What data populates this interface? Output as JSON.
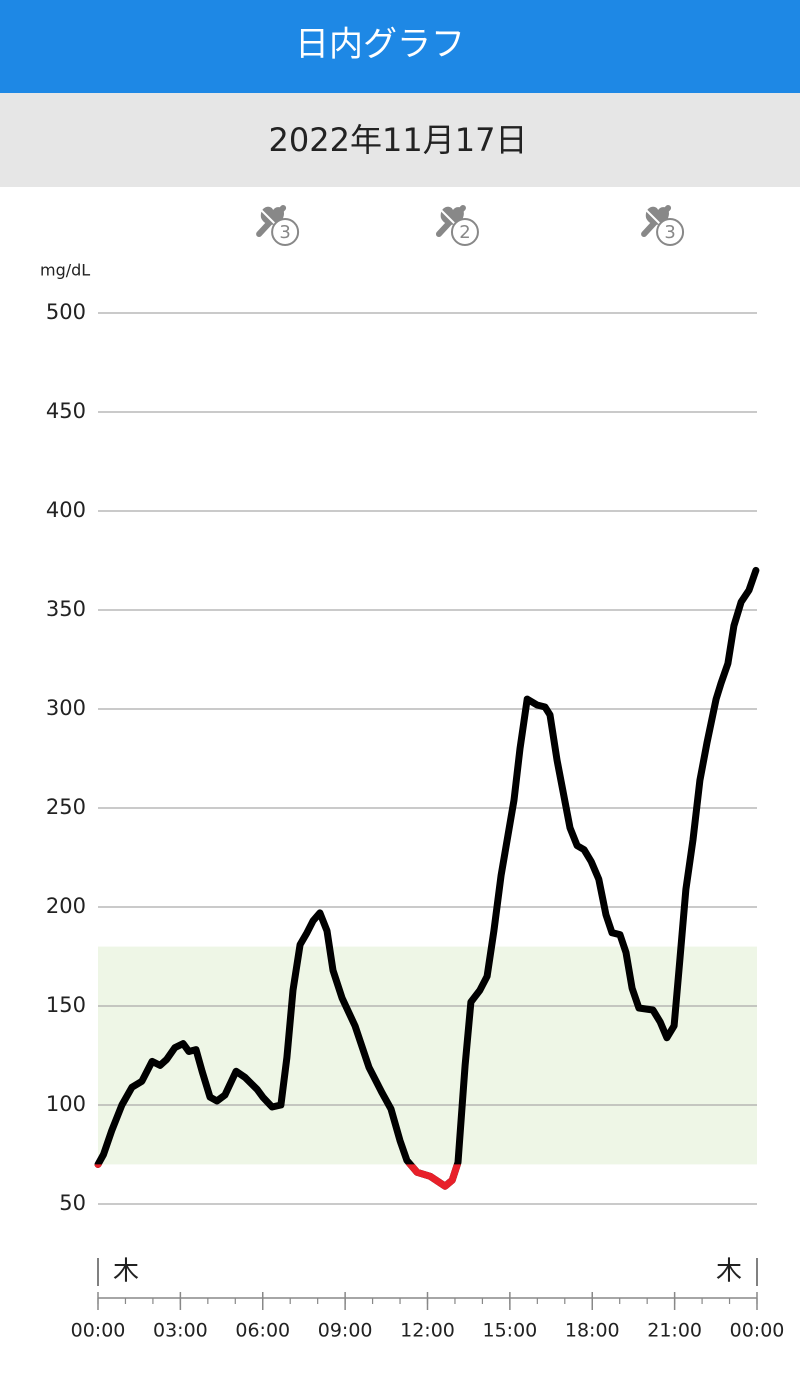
{
  "chart_data": {
    "type": "line",
    "title": "日内グラフ",
    "subtitle": "2022年11月17日",
    "y_label": "mg/dL",
    "x": [
      0,
      0.2,
      0.5,
      0.87,
      1.24,
      1.6,
      1.97,
      2.26,
      2.5,
      2.8,
      3.1,
      3.31,
      3.57,
      3.79,
      4.08,
      4.33,
      4.62,
      5.03,
      5.35,
      5.79,
      6.0,
      6.34,
      6.66,
      6.88,
      7.1,
      7.36,
      7.61,
      7.83,
      8.08,
      8.34,
      8.56,
      8.89,
      9.36,
      9.87,
      10.35,
      10.67,
      11.0,
      11.25,
      11.62,
      12.1,
      12.64,
      12.9,
      13.11,
      13.37,
      13.58,
      13.91,
      14.17,
      14.42,
      14.68,
      15.15,
      15.37,
      15.63,
      15.99,
      16.28,
      16.46,
      16.72,
      17.19,
      17.45,
      17.7,
      17.96,
      18.24,
      18.5,
      18.72,
      19.01,
      19.23,
      19.45,
      19.7,
      20.21,
      20.47,
      20.72,
      20.98,
      21.19,
      21.41,
      21.67,
      21.92,
      22.18,
      22.51,
      22.69,
      22.94,
      23.16,
      23.42,
      23.71,
      23.96
    ],
    "series": [
      {
        "color": "#000000",
        "low_color": "#e8202a",
        "values": [
          70,
          75,
          87,
          100,
          109,
          112,
          122,
          120,
          123,
          129,
          131,
          127,
          128,
          117,
          104,
          102,
          105,
          117,
          114,
          108,
          104,
          99,
          100,
          124,
          158,
          181,
          187,
          193,
          197,
          188,
          168,
          154,
          140,
          119,
          106,
          98,
          82,
          72,
          66,
          64,
          59,
          62,
          71,
          120,
          152,
          158,
          165,
          188,
          216,
          254,
          280,
          305,
          302,
          301,
          297,
          274,
          240,
          231,
          229,
          223,
          214,
          196,
          187,
          186,
          177,
          159,
          149,
          148,
          142,
          134,
          140,
          173,
          209,
          234,
          264,
          283,
          305,
          313,
          323,
          342,
          354,
          360,
          370
        ]
      }
    ],
    "target_range": [
      70,
      180
    ],
    "target_color": "#eef6e6",
    "xlim": [
      0,
      24
    ],
    "xticks": [
      {
        "value": 0,
        "label": "00:00"
      },
      {
        "value": 3,
        "label": "03:00"
      },
      {
        "value": 6,
        "label": "06:00"
      },
      {
        "value": 9,
        "label": "09:00"
      },
      {
        "value": 12,
        "label": "12:00"
      },
      {
        "value": 15,
        "label": "15:00"
      },
      {
        "value": 18,
        "label": "18:00"
      },
      {
        "value": 21,
        "label": "21:00"
      },
      {
        "value": 24,
        "label": "00:00"
      }
    ],
    "ylim": [
      50,
      500
    ],
    "yticks": [
      50,
      100,
      150,
      200,
      250,
      300,
      350,
      400,
      450,
      500
    ],
    "grid": true,
    "day_labels": [
      "木",
      "木"
    ],
    "events": [
      {
        "x": 6.45,
        "label": "3"
      },
      {
        "x": 13.0,
        "label": "2"
      },
      {
        "x": 20.47,
        "label": "3"
      }
    ]
  }
}
